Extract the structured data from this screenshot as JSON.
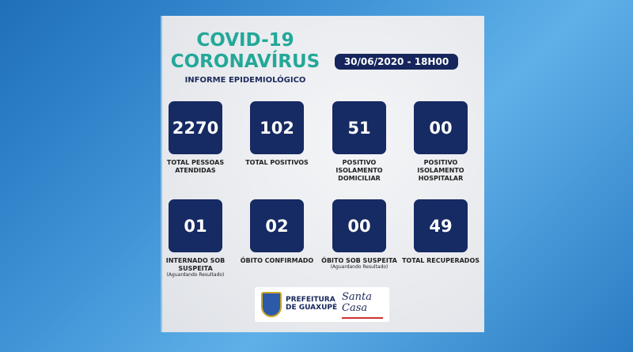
{
  "header": {
    "title1": "COVID-19",
    "title2": "CORONAVÍRUS",
    "subtitle": "INFORME EPIDEMIOLÓGICO",
    "date": "30/06/2020 - 18H00"
  },
  "stats": [
    {
      "value": "2270",
      "label": "TOTAL PESSOAS ATENDIDAS",
      "note": ""
    },
    {
      "value": "102",
      "label": "TOTAL POSITIVOS",
      "note": ""
    },
    {
      "value": "51",
      "label": "POSITIVO ISOLAMENTO DOMICILIAR",
      "note": ""
    },
    {
      "value": "00",
      "label": "POSITIVO ISOLAMENTO HOSPITALAR",
      "note": ""
    },
    {
      "value": "01",
      "label": "INTERNADO SOB SUSPEITA",
      "note": "(Aguardando Resultado)"
    },
    {
      "value": "02",
      "label": "ÓBITO CONFIRMADO",
      "note": ""
    },
    {
      "value": "00",
      "label": "ÓBITO SOB SUSPEITA",
      "note": "(Aguardando Resultado)"
    },
    {
      "value": "49",
      "label": "TOTAL RECUPERADOS",
      "note": ""
    }
  ],
  "footer": {
    "prefeitura": "PREFEITURA DE GUAXUPÉ",
    "santa_casa": "Santa Casa"
  },
  "colors": {
    "tile": "#162a63",
    "title": "#23a898"
  }
}
